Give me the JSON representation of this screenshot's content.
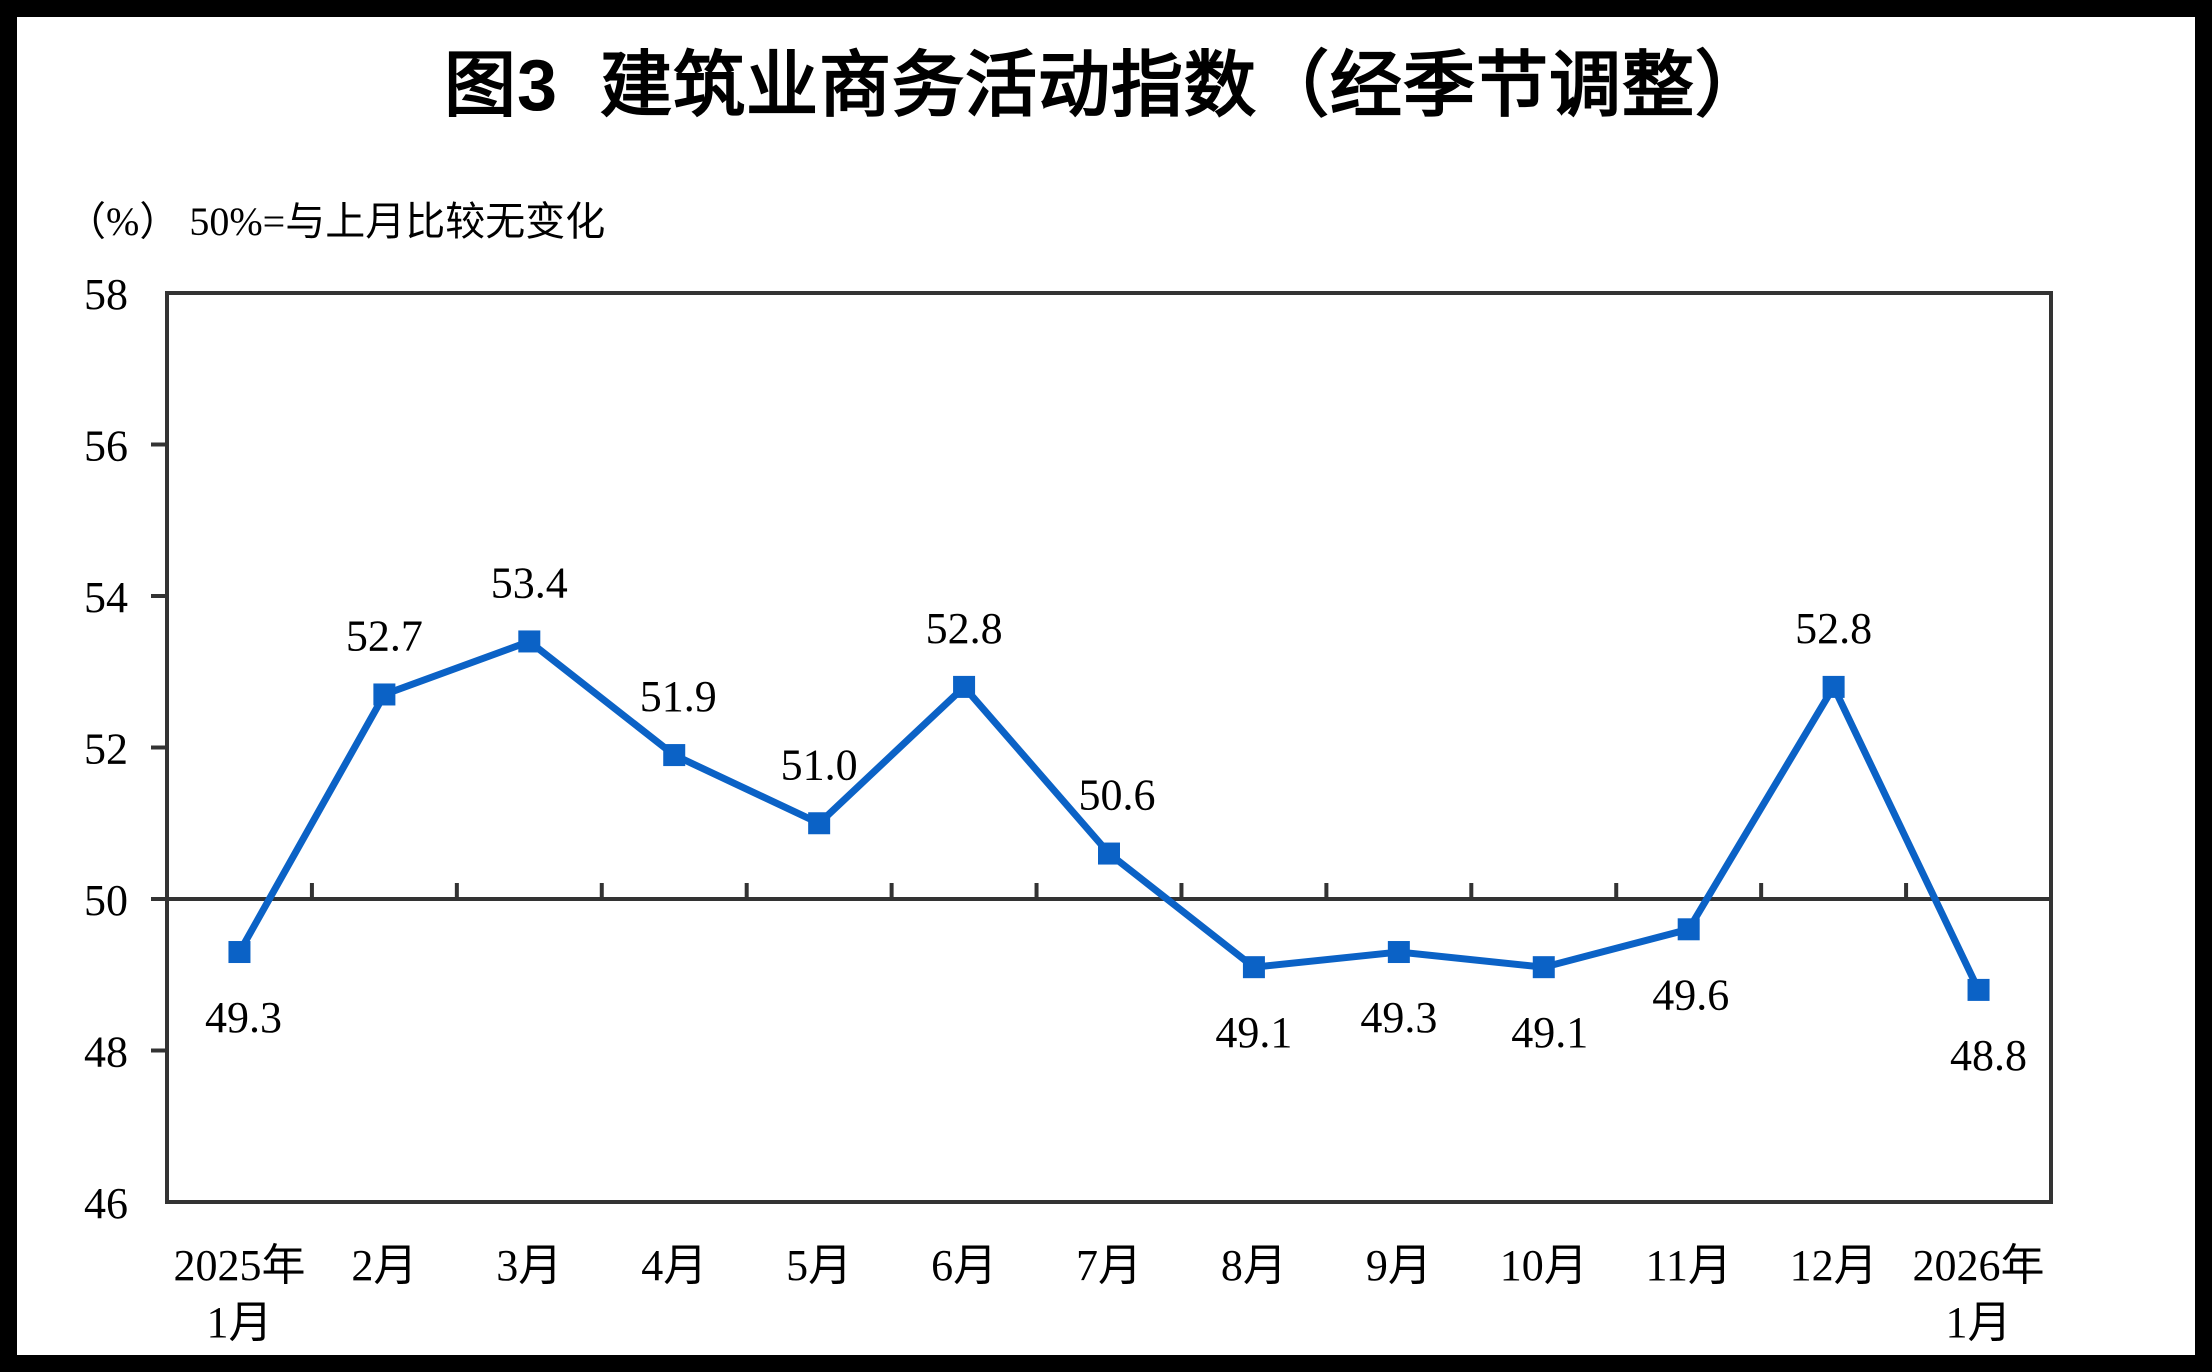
{
  "chart_data": {
    "type": "line",
    "title": "图3  建筑业商务活动指数（经季节调整）",
    "note": "（%） 50%=与上月比较无变化",
    "categories": [
      "2025年\n1月",
      "2月",
      "3月",
      "4月",
      "5月",
      "6月",
      "7月",
      "8月",
      "9月",
      "10月",
      "11月",
      "12月",
      "2026年\n1月"
    ],
    "values": [
      49.3,
      52.7,
      53.4,
      51.9,
      51.0,
      52.8,
      50.6,
      49.1,
      49.3,
      49.1,
      49.6,
      52.8,
      48.8
    ],
    "data_labels": [
      "49.3",
      "52.7",
      "53.4",
      "51.9",
      "51.0",
      "52.8",
      "50.6",
      "49.1",
      "49.3",
      "49.1",
      "49.6",
      "52.8",
      "48.8"
    ],
    "label_side": [
      "below",
      "above",
      "above",
      "above",
      "above",
      "above",
      "above",
      "below",
      "below",
      "below",
      "below",
      "above",
      "below"
    ],
    "label_dx": [
      4,
      0,
      0,
      4,
      0,
      0,
      8,
      0,
      0,
      6,
      2,
      0,
      10
    ],
    "ylim": [
      46,
      58
    ],
    "yticks": [
      46,
      48,
      50,
      52,
      54,
      56,
      58
    ],
    "baseline": 50,
    "xlabel": "",
    "ylabel": "（%）",
    "grid": false,
    "legend": "none",
    "line_color": "#0B62C6",
    "marker": "square",
    "axis_color": "#333333",
    "text_color": "#000000"
  }
}
